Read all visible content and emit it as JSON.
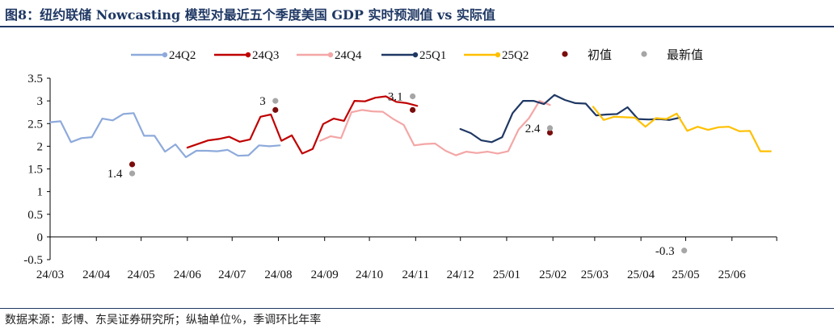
{
  "title": "图8：纽约联储 Nowcasting 模型对最近五个季度美国 GDP 实时预测值 vs 实际值",
  "source": "数据来源：彭博、东吴证券研究所；纵轴单位%，季调环比年率",
  "colors": {
    "24Q2": "#8eaadb",
    "24Q3": "#c00000",
    "24Q4": "#f4a6a6",
    "25Q1": "#1f3864",
    "25Q2": "#ffc000",
    "initial": "#7b0c0c",
    "latest": "#a6a6a6"
  },
  "chart_data": {
    "type": "line",
    "title": "纽约联储 Nowcasting 模型对最近五个季度美国 GDP 实时预测值 vs 实际值",
    "ylabel": "%",
    "ylim": [
      -0.5,
      3.5
    ],
    "yticks": [
      "-0.5",
      "0",
      "0.5",
      "1",
      "1.5",
      "2",
      "2.5",
      "3",
      "3.5"
    ],
    "ytick_values": [
      -0.5,
      0,
      0.5,
      1,
      1.5,
      2,
      2.5,
      3,
      3.5
    ],
    "xticks": [
      "24/03",
      "24/04",
      "24/05",
      "24/06",
      "24/07",
      "24/08",
      "24/09",
      "24/10",
      "24/11",
      "24/12",
      "25/01",
      "25/02",
      "25/03",
      "25/04",
      "25/05",
      "25/06"
    ],
    "xtick_dates": [
      "2024-03-01",
      "2024-04-01",
      "2024-05-01",
      "2024-06-01",
      "2024-07-01",
      "2024-08-01",
      "2024-09-01",
      "2024-10-01",
      "2024-11-01",
      "2024-12-01",
      "2025-01-01",
      "2025-02-01",
      "2025-03-01",
      "2025-04-01",
      "2025-05-01",
      "2025-06-01"
    ],
    "grid": false,
    "legend_position": "top",
    "series": [
      {
        "name": "24Q2",
        "key": "24Q2",
        "x": [
          "2024-03-01",
          "2024-03-08",
          "2024-03-15",
          "2024-03-22",
          "2024-03-29",
          "2024-04-05",
          "2024-04-12",
          "2024-04-19",
          "2024-04-26",
          "2024-05-03",
          "2024-05-10",
          "2024-05-17",
          "2024-05-24",
          "2024-05-31",
          "2024-06-07",
          "2024-06-14",
          "2024-06-21",
          "2024-06-28",
          "2024-07-05",
          "2024-07-12",
          "2024-07-19",
          "2024-07-26",
          "2024-08-02"
        ],
        "y": [
          2.53,
          2.55,
          2.09,
          2.18,
          2.2,
          2.61,
          2.57,
          2.71,
          2.73,
          2.23,
          2.23,
          1.88,
          2.04,
          1.76,
          1.9,
          1.9,
          1.89,
          1.92,
          1.79,
          1.8,
          2.02,
          2.0,
          2.02
        ]
      },
      {
        "name": "24Q3",
        "key": "24Q3",
        "x": [
          "2024-06-01",
          "2024-06-08",
          "2024-06-15",
          "2024-06-22",
          "2024-06-29",
          "2024-07-06",
          "2024-07-13",
          "2024-07-20",
          "2024-07-27",
          "2024-08-03",
          "2024-08-10",
          "2024-08-17",
          "2024-08-24",
          "2024-08-31",
          "2024-09-07",
          "2024-09-14",
          "2024-09-21",
          "2024-09-28",
          "2024-10-05",
          "2024-10-12",
          "2024-10-19",
          "2024-10-26",
          "2024-11-02"
        ],
        "y": [
          1.97,
          2.05,
          2.13,
          2.16,
          2.21,
          2.1,
          2.15,
          2.65,
          2.7,
          2.12,
          2.24,
          1.84,
          1.94,
          2.49,
          2.61,
          2.56,
          3.0,
          2.99,
          3.07,
          3.1,
          2.98,
          2.95,
          2.89
        ]
      },
      {
        "name": "24Q4",
        "key": "24Q4",
        "x": [
          "2024-08-29",
          "2024-09-05",
          "2024-09-12",
          "2024-09-19",
          "2024-09-26",
          "2024-10-03",
          "2024-10-10",
          "2024-10-17",
          "2024-10-24",
          "2024-10-31",
          "2024-11-07",
          "2024-11-14",
          "2024-11-21",
          "2024-11-28",
          "2024-12-05",
          "2024-12-12",
          "2024-12-19",
          "2024-12-26",
          "2025-01-02",
          "2025-01-09",
          "2025-01-16",
          "2025-01-23",
          "2025-01-30"
        ],
        "y": [
          2.12,
          2.22,
          2.18,
          2.75,
          2.8,
          2.77,
          2.76,
          2.6,
          2.47,
          2.02,
          2.05,
          2.06,
          1.9,
          1.8,
          1.88,
          1.85,
          1.88,
          1.84,
          1.89,
          2.37,
          2.62,
          3.0,
          2.91
        ]
      },
      {
        "name": "25Q1",
        "key": "25Q1",
        "x": [
          "2024-12-01",
          "2024-12-08",
          "2024-12-15",
          "2024-12-22",
          "2024-12-29",
          "2025-01-05",
          "2025-01-12",
          "2025-01-19",
          "2025-01-26",
          "2025-02-02",
          "2025-02-09",
          "2025-02-16",
          "2025-02-23",
          "2025-03-02",
          "2025-03-09",
          "2025-03-16",
          "2025-03-23",
          "2025-03-30",
          "2025-04-06",
          "2025-04-13",
          "2025-04-20",
          "2025-04-27"
        ],
        "y": [
          2.38,
          2.29,
          2.13,
          2.09,
          2.2,
          2.73,
          3.0,
          3.0,
          2.93,
          3.13,
          3.02,
          2.95,
          2.94,
          2.68,
          2.7,
          2.71,
          2.86,
          2.6,
          2.59,
          2.6,
          2.58,
          2.63
        ]
      },
      {
        "name": "25Q2",
        "key": "25Q2",
        "x": [
          "2025-02-28",
          "2025-03-07",
          "2025-03-14",
          "2025-03-21",
          "2025-03-28",
          "2025-04-04",
          "2025-04-11",
          "2025-04-18",
          "2025-04-25",
          "2025-05-02",
          "2025-05-09",
          "2025-05-16",
          "2025-05-23",
          "2025-05-30",
          "2025-06-06",
          "2025-06-13",
          "2025-06-20",
          "2025-06-27"
        ],
        "y": [
          2.87,
          2.58,
          2.65,
          2.64,
          2.63,
          2.43,
          2.62,
          2.6,
          2.72,
          2.34,
          2.43,
          2.36,
          2.42,
          2.43,
          2.33,
          2.34,
          1.89,
          1.89
        ]
      }
    ],
    "markers": [
      {
        "name": "初值",
        "key": "initial",
        "points": [
          {
            "x": "2024-04-25",
            "y": 1.6
          },
          {
            "x": "2024-07-30",
            "y": 2.8
          },
          {
            "x": "2024-10-30",
            "y": 2.8
          },
          {
            "x": "2025-01-30",
            "y": 2.3
          }
        ]
      },
      {
        "name": "最新值",
        "key": "latest",
        "points": [
          {
            "x": "2024-04-25",
            "y": 1.4
          },
          {
            "x": "2024-07-30",
            "y": 3.0
          },
          {
            "x": "2024-10-30",
            "y": 3.1
          },
          {
            "x": "2025-01-30",
            "y": 2.4
          },
          {
            "x": "2025-04-30",
            "y": -0.3
          }
        ]
      }
    ],
    "annotations": [
      {
        "text": "1.4",
        "x": "2024-04-25",
        "y": 1.4,
        "side": "left"
      },
      {
        "text": "3",
        "x": "2024-07-30",
        "y": 3.0,
        "side": "left"
      },
      {
        "text": "3.1",
        "x": "2024-10-30",
        "y": 3.1,
        "side": "left"
      },
      {
        "text": "2.4",
        "x": "2025-01-30",
        "y": 2.4,
        "side": "left"
      },
      {
        "text": "-0.3",
        "x": "2025-04-30",
        "y": -0.3,
        "side": "left"
      }
    ]
  }
}
